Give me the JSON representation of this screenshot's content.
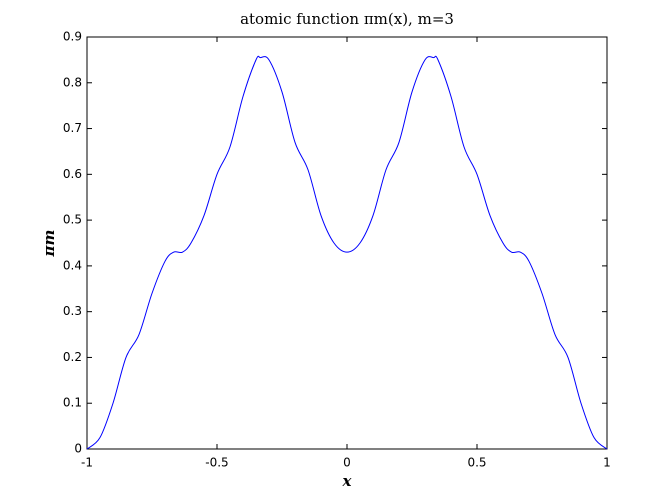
{
  "chart_data": {
    "type": "line",
    "title": "atomic function πm(x), m=3",
    "xlabel": "x",
    "ylabel": "πm",
    "x": [
      -1,
      -0.95,
      -0.9,
      -0.85,
      -0.8,
      -0.75,
      -0.7,
      -0.667,
      -0.633,
      -0.6,
      -0.55,
      -0.5,
      -0.45,
      -0.4,
      -0.35,
      -0.333,
      -0.3,
      -0.25,
      -0.2,
      -0.15,
      -0.1,
      -0.05,
      0,
      0.05,
      0.1,
      0.15,
      0.2,
      0.25,
      0.3,
      0.333,
      0.35,
      0.4,
      0.45,
      0.5,
      0.55,
      0.6,
      0.633,
      0.667,
      0.7,
      0.75,
      0.8,
      0.85,
      0.9,
      0.95,
      1
    ],
    "series": [
      {
        "name": "πm",
        "color": "#0000ff",
        "values": [
          0,
          0.025,
          0.1,
          0.2,
          0.25,
          0.34,
          0.41,
          0.43,
          0.43,
          0.45,
          0.51,
          0.6,
          0.66,
          0.77,
          0.85,
          0.855,
          0.85,
          0.78,
          0.67,
          0.61,
          0.51,
          0.45,
          0.43,
          0.45,
          0.51,
          0.61,
          0.67,
          0.78,
          0.85,
          0.855,
          0.85,
          0.77,
          0.66,
          0.6,
          0.51,
          0.45,
          0.43,
          0.43,
          0.41,
          0.34,
          0.25,
          0.2,
          0.1,
          0.025,
          0
        ]
      }
    ],
    "xlim": [
      -1,
      1
    ],
    "xticks": [
      -1,
      -0.5,
      0,
      0.5,
      1
    ],
    "ylim": [
      0,
      0.9
    ],
    "yticks": [
      0,
      0.1,
      0.2,
      0.3,
      0.4,
      0.5,
      0.6,
      0.7,
      0.8,
      0.9
    ],
    "grid": false
  }
}
